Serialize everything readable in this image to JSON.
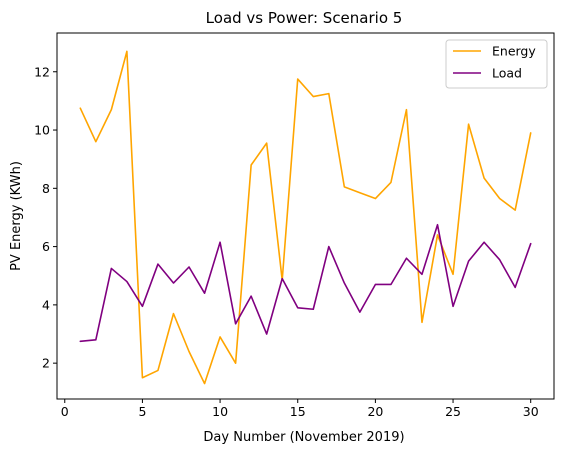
{
  "chart_data": {
    "type": "line",
    "title": "Load vs Power: Scenario 5",
    "xlabel": "Day Number (November 2019)",
    "ylabel": "PV Energy (KWh)",
    "xlim": [
      -0.5,
      31.5
    ],
    "ylim": [
      0.77,
      13.33
    ],
    "x_ticks": [
      0,
      5,
      10,
      15,
      20,
      25,
      30
    ],
    "y_ticks": [
      2,
      4,
      6,
      8,
      10,
      12
    ],
    "legend_position": "top-right",
    "grid": false,
    "x": [
      1,
      2,
      3,
      4,
      5,
      6,
      7,
      8,
      9,
      10,
      11,
      12,
      13,
      14,
      15,
      16,
      17,
      18,
      19,
      20,
      21,
      22,
      23,
      24,
      25,
      26,
      27,
      28,
      29,
      30
    ],
    "series": [
      {
        "name": "Energy",
        "color": "#FFA500",
        "values": [
          10.75,
          9.6,
          10.7,
          12.7,
          1.5,
          1.75,
          3.7,
          2.4,
          1.3,
          2.9,
          2.0,
          8.8,
          9.55,
          4.85,
          11.75,
          11.15,
          11.25,
          8.05,
          7.85,
          7.65,
          8.2,
          10.7,
          3.4,
          6.4,
          5.05,
          10.2,
          8.35,
          7.65,
          7.25,
          9.9
        ]
      },
      {
        "name": "Load",
        "color": "#800080",
        "values": [
          2.75,
          2.8,
          5.25,
          4.8,
          3.95,
          5.4,
          4.75,
          5.3,
          4.4,
          6.15,
          3.35,
          4.3,
          3.0,
          4.9,
          3.9,
          3.85,
          6.0,
          4.75,
          3.75,
          4.7,
          4.7,
          5.6,
          5.05,
          6.75,
          3.95,
          5.5,
          6.15,
          5.55,
          4.6,
          6.1
        ]
      }
    ]
  }
}
